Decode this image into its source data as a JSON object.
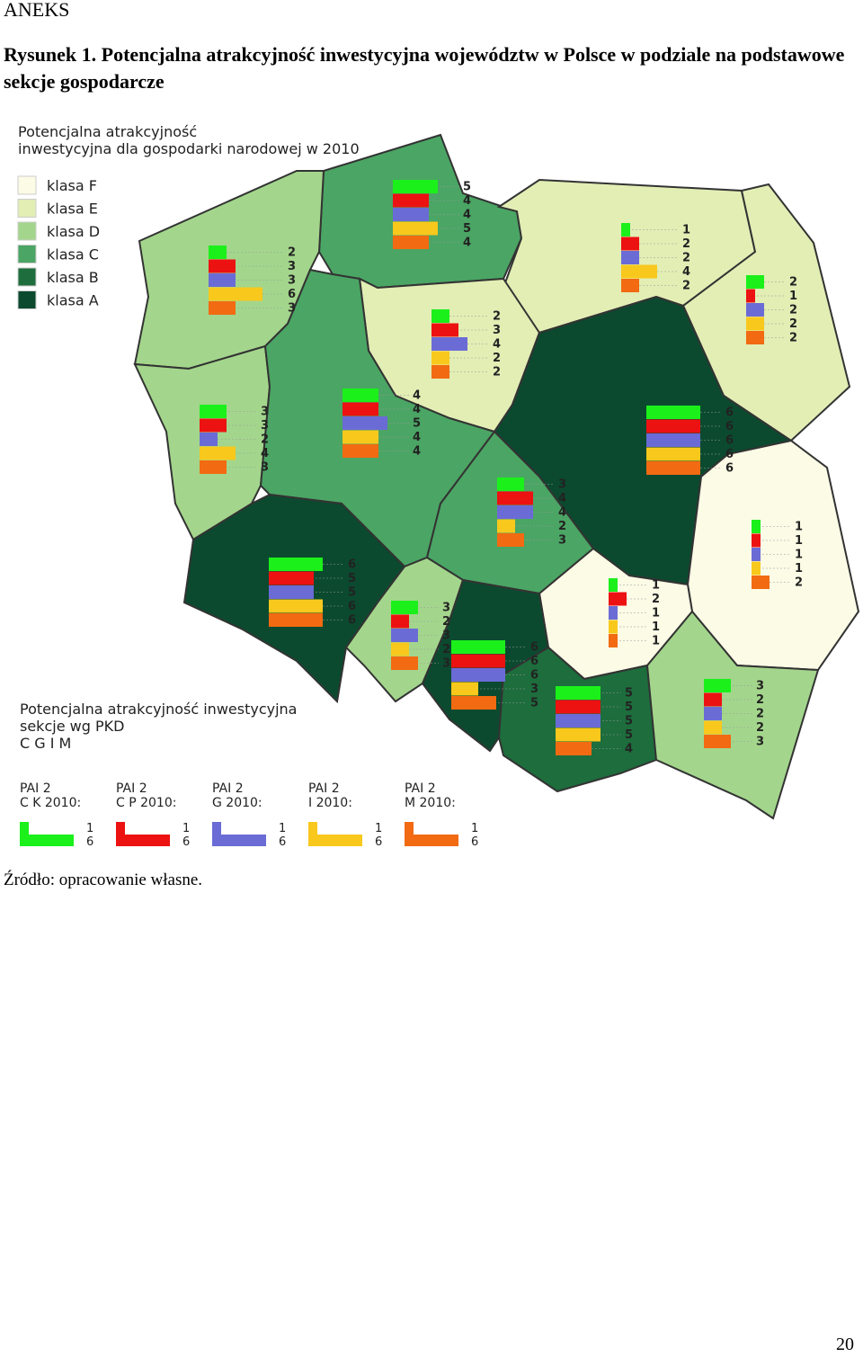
{
  "header": "ANEKS",
  "caption": "Rysunek 1. Potencjalna atrakcyjność inwestycyjna województw w Polsce w podziale na podstawowe sekcje gospodarcze",
  "map": {
    "legend_title": [
      "Potencjalna atrakcyjność",
      "inwestycyjna dla gospodarki narodowej w 2010"
    ],
    "classes": [
      {
        "name": "klasa F",
        "color": "#fbfbe6"
      },
      {
        "name": "klasa E",
        "color": "#e2eeb4"
      },
      {
        "name": "klasa D",
        "color": "#a3d68c"
      },
      {
        "name": "klasa C",
        "color": "#4ba564"
      },
      {
        "name": "klasa B",
        "color": "#1d6d3d"
      },
      {
        "name": "klasa A",
        "color": "#0b4a2f"
      }
    ],
    "sections_title": [
      "Potencjalna atrakcyjność inwestycyjna",
      "sekcje wg PKD",
      "C G I M"
    ],
    "series": [
      {
        "name": [
          "PAI 2",
          "C K 2010:"
        ],
        "color": "#1bf01b",
        "scale": [
          1,
          6
        ]
      },
      {
        "name": [
          "PAI 2",
          "C P 2010:"
        ],
        "color": "#ec1212",
        "scale": [
          1,
          6
        ]
      },
      {
        "name": [
          "PAI 2",
          "G 2010:"
        ],
        "color": "#6b6bd6",
        "scale": [
          1,
          6
        ]
      },
      {
        "name": [
          "PAI 2",
          "I 2010:"
        ],
        "color": "#f8c81c",
        "scale": [
          1,
          6
        ]
      },
      {
        "name": [
          "PAI 2",
          "M 2010:"
        ],
        "color": "#f26a12",
        "scale": [
          1,
          6
        ]
      }
    ],
    "regions": [
      {
        "color": "#4ba564",
        "values": [
          5,
          4,
          4,
          5,
          4
        ]
      },
      {
        "color": "#a3d68c",
        "values": [
          2,
          3,
          3,
          6,
          3
        ]
      },
      {
        "color": "#e2eeb4",
        "values": [
          1,
          2,
          2,
          4,
          2
        ]
      },
      {
        "color": "#e2eeb4",
        "values": [
          2,
          1,
          2,
          2,
          2
        ]
      },
      {
        "color": "#e2eeb4",
        "values": [
          2,
          3,
          4,
          2,
          2
        ]
      },
      {
        "color": "#a3d68c",
        "values": [
          3,
          3,
          2,
          4,
          3
        ]
      },
      {
        "color": "#4ba564",
        "values": [
          4,
          4,
          5,
          4,
          4
        ]
      },
      {
        "color": "#0b4a2f",
        "values": [
          6,
          6,
          6,
          6,
          6
        ]
      },
      {
        "color": "#4ba564",
        "values": [
          3,
          4,
          4,
          2,
          3
        ]
      },
      {
        "color": "#fbfbe6",
        "values": [
          1,
          1,
          1,
          1,
          2
        ]
      },
      {
        "color": "#0b4a2f",
        "values": [
          6,
          5,
          5,
          6,
          6
        ]
      },
      {
        "color": "#a3d68c",
        "values": [
          3,
          2,
          3,
          2,
          3
        ]
      },
      {
        "color": "#fbfbe6",
        "values": [
          1,
          2,
          1,
          1,
          1
        ]
      },
      {
        "color": "#0b4a2f",
        "values": [
          6,
          6,
          6,
          3,
          5
        ]
      },
      {
        "color": "#1d6d3d",
        "values": [
          5,
          5,
          5,
          5,
          4
        ]
      },
      {
        "color": "#a3d68c",
        "values": [
          3,
          2,
          2,
          2,
          3
        ]
      }
    ]
  },
  "source": "Źródło: opracowanie własne.",
  "page_number": "20"
}
